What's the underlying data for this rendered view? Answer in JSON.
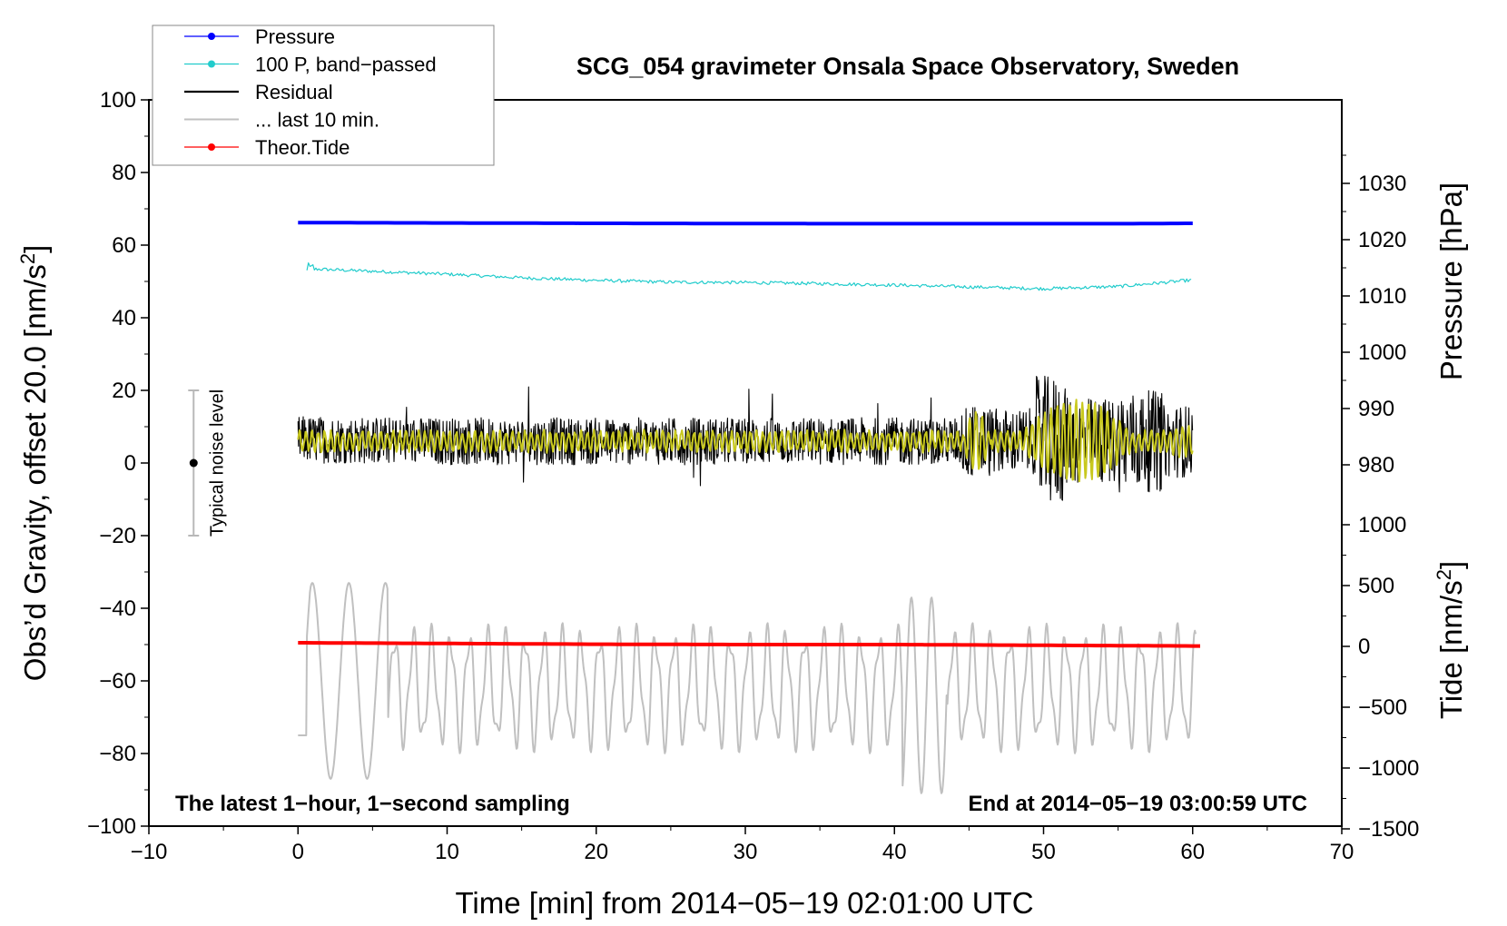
{
  "chart_data": {
    "type": "line",
    "title": "SCG_054 gravimeter Onsala Space Observatory, Sweden",
    "xlabel": "Time [min] from 2014−05−19 02:01:00 UTC",
    "ylabel_left_main": "Obs’d Gravity, offset 20.0 [nm/s",
    "ylabel_left_sup": "2",
    "ylabel_left_end": "]",
    "ylabel_right_pressure": "Pressure [hPa]",
    "ylabel_right_tide_main": "Tide [nm/s",
    "ylabel_right_tide_sup": "2",
    "ylabel_right_tide_end": "]",
    "xlim": [
      -10,
      70
    ],
    "ylim": [
      -100,
      100
    ],
    "x_ticks": [
      "−10",
      "0",
      "10",
      "20",
      "30",
      "40",
      "50",
      "60",
      "70"
    ],
    "x_tick_values": [
      -10,
      0,
      10,
      20,
      30,
      40,
      50,
      60,
      70
    ],
    "y_ticks": [
      "100",
      "80",
      "60",
      "40",
      "20",
      "0",
      "−20",
      "−40",
      "−60",
      "−80",
      "−100"
    ],
    "y_tick_values": [
      100,
      80,
      60,
      40,
      20,
      0,
      -20,
      -40,
      -60,
      -80,
      -100
    ],
    "pressure_ticks": [
      "1030",
      "1020",
      "1010",
      "1000",
      "990",
      "980"
    ],
    "pressure_tick_values": [
      1030,
      1020,
      1010,
      1000,
      990,
      980
    ],
    "tide_ticks": [
      "1000",
      "500",
      "0",
      "−500",
      "−1000",
      "−1500"
    ],
    "tide_tick_values": [
      1000,
      500,
      0,
      -500,
      -1000,
      -1500
    ],
    "series": [
      {
        "name": "Pressure",
        "color": "#0000ff",
        "x": [
          0,
          20,
          36,
          45,
          56,
          60
        ],
        "y": [
          66.2,
          66.0,
          65.9,
          65.9,
          65.9,
          66.0
        ]
      },
      {
        "name": "100 P, band−passed",
        "color": "#22cccc",
        "x": [
          0.6,
          5,
          10,
          15,
          20,
          25,
          30,
          35,
          40,
          45,
          50,
          55,
          60
        ],
        "y": [
          53.5,
          52.8,
          52.0,
          51.0,
          50.3,
          49.8,
          49.7,
          49.4,
          49.0,
          48.5,
          48.0,
          48.6,
          50.4
        ]
      },
      {
        "name": "Residual",
        "color": "#000000",
        "x": [
          0,
          10,
          20,
          30,
          40,
          45,
          50,
          55,
          60
        ],
        "y": [
          6.5,
          6.0,
          6.0,
          6.0,
          6.0,
          6.0,
          6.0,
          6.0,
          6.0
        ]
      },
      {
        "name": "... last 10 min.",
        "color": "#c0c0c0",
        "x": [
          0,
          1.6,
          2.8,
          4,
          5,
          6,
          10,
          20,
          30,
          40,
          41.5,
          42,
          50,
          60
        ],
        "y": [
          -75,
          -30,
          -87,
          -30,
          -85,
          -46,
          -73,
          -65,
          -68,
          -37,
          -90,
          -37,
          -70,
          -52
        ]
      },
      {
        "name": "Theor.Tide",
        "color": "#ff0000",
        "x": [
          0,
          10,
          20,
          30,
          40,
          50,
          60.5
        ],
        "y": [
          -49.5,
          -49.7,
          -49.9,
          -50.0,
          -50.0,
          -50.2,
          -50.4
        ]
      }
    ],
    "noise_bar": {
      "x": -7,
      "center": 0,
      "low": -20,
      "high": 20,
      "label": "Typical noise level"
    },
    "annotation_left": "The latest 1−hour, 1−second sampling",
    "annotation_right": "End at 2014−05−19 03:00:59 UTC",
    "legend": [
      {
        "label": "Pressure",
        "color": "#0000ff",
        "marker": true
      },
      {
        "label": "100 P, band−passed",
        "color": "#22cccc",
        "marker": true
      },
      {
        "label": "Residual",
        "color": "#000000",
        "marker": false
      },
      {
        "label": "... last 10 min.",
        "color": "#c0c0c0",
        "marker": false
      },
      {
        "label": "Theor.Tide",
        "color": "#ff0000",
        "marker": true
      }
    ]
  }
}
